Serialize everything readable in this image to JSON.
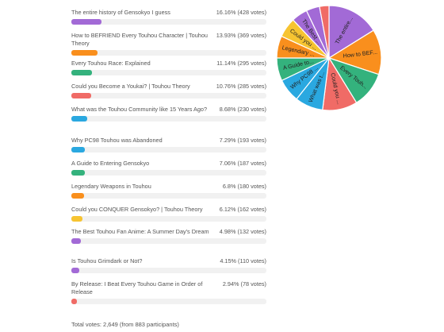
{
  "poll": {
    "options": [
      {
        "label": "The entire history of Gensokyo I guess",
        "percent": "16.16%",
        "votes": "(428 votes)",
        "share": 16.16,
        "color": "#a26ad6",
        "short": "The entire..."
      },
      {
        "label": "How to BEFRIEND Every Touhou Character | Touhou Theory",
        "percent": "13.93%",
        "votes": "(369 votes)",
        "share": 13.93,
        "color": "#f98f1d",
        "short": "How to BEF..."
      },
      {
        "label": "Every Touhou Race: Explained",
        "percent": "11.14%",
        "votes": "(295 votes)",
        "share": 11.14,
        "color": "#34b27d",
        "short": "Every Touh..."
      },
      {
        "label": "Could you Become a Youkai? | Touhou Theory",
        "percent": "10.76%",
        "votes": "(285 votes)",
        "share": 10.76,
        "color": "#f06b66",
        "short": "Could you ..."
      },
      {
        "label": "What was the Touhou Community like 15 Years Ago?",
        "percent": "8.68%",
        "votes": "(230 votes)",
        "share": 8.68,
        "color": "#2aa8e0",
        "short": "What was t..."
      },
      {
        "label": "Why PC98 Touhou was Abandoned",
        "percent": "7.29%",
        "votes": "(193 votes)",
        "share": 7.29,
        "color": "#2aa8e0",
        "short": "Why PC98 ..."
      },
      {
        "label": "A Guide to Entering Gensokyo",
        "percent": "7.06%",
        "votes": "(187 votes)",
        "share": 7.06,
        "color": "#34b27d",
        "short": "A Guide to..."
      },
      {
        "label": "Legendary Weapons in Touhou",
        "percent": "6.8%",
        "votes": "(180 votes)",
        "share": 6.8,
        "color": "#f98f1d",
        "short": "Legendary ..."
      },
      {
        "label": "Could you CONQUER Gensokyo? | Touhou Theory",
        "percent": "6.12%",
        "votes": "(162 votes)",
        "share": 6.12,
        "color": "#f7c431",
        "short": "Could you ..."
      },
      {
        "label": "The Best Touhou Fan Anime: A Summer Day's Dream",
        "percent": "4.98%",
        "votes": "(132 votes)",
        "share": 4.98,
        "color": "#a26ad6",
        "short": "The Best ..."
      },
      {
        "label": "Is Touhou Grimdark or Not?",
        "percent": "4.15%",
        "votes": "(110 votes)",
        "share": 4.15,
        "color": "#a26ad6",
        "short": ""
      },
      {
        "label": "By Release: I Beat Every Touhou Game in Order of Release",
        "percent": "2.94%",
        "votes": "(78 votes)",
        "share": 2.94,
        "color": "#f06b66",
        "short": ""
      }
    ],
    "total": "Total votes: 2,649 (from 883 participants)"
  }
}
